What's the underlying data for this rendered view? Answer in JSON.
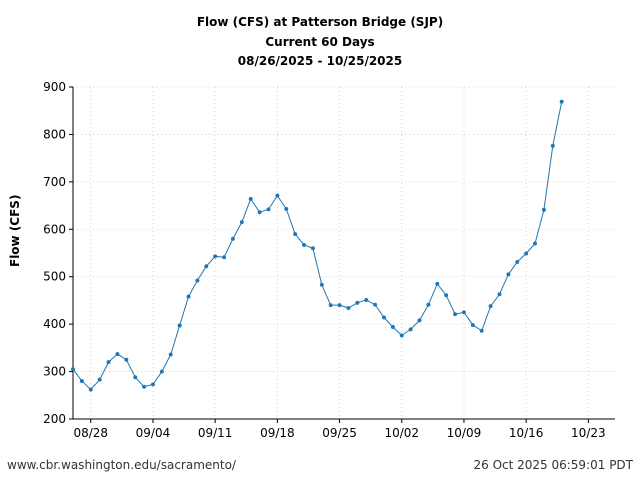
{
  "chart_data": {
    "type": "line",
    "title": "Flow (CFS) at Patterson Bridge (SJP)",
    "subtitle": "Current 60 Days",
    "date_range": "08/26/2025 - 10/25/2025",
    "ylabel": "Flow (CFS)",
    "xlabel": "",
    "ylim": [
      200,
      900
    ],
    "yticks": [
      200,
      300,
      400,
      500,
      600,
      700,
      800,
      900
    ],
    "xlim": [
      "2025-08-26",
      "2025-10-26"
    ],
    "xticks": [
      "08/28",
      "09/04",
      "09/11",
      "09/18",
      "09/25",
      "10/02",
      "10/09",
      "10/16",
      "10/23"
    ],
    "grid": true,
    "series": [
      {
        "color": "#1f77b4",
        "x": [
          "2025-08-26",
          "2025-08-27",
          "2025-08-28",
          "2025-08-29",
          "2025-08-30",
          "2025-08-31",
          "2025-09-01",
          "2025-09-02",
          "2025-09-03",
          "2025-09-04",
          "2025-09-05",
          "2025-09-06",
          "2025-09-07",
          "2025-09-08",
          "2025-09-09",
          "2025-09-10",
          "2025-09-11",
          "2025-09-12",
          "2025-09-13",
          "2025-09-14",
          "2025-09-15",
          "2025-09-16",
          "2025-09-17",
          "2025-09-18",
          "2025-09-19",
          "2025-09-20",
          "2025-09-21",
          "2025-09-22",
          "2025-09-23",
          "2025-09-24",
          "2025-09-25",
          "2025-09-26",
          "2025-09-27",
          "2025-09-28",
          "2025-09-29",
          "2025-09-30",
          "2025-10-01",
          "2025-10-02",
          "2025-10-03",
          "2025-10-04",
          "2025-10-05",
          "2025-10-06",
          "2025-10-07",
          "2025-10-08",
          "2025-10-09",
          "2025-10-10",
          "2025-10-11",
          "2025-10-12",
          "2025-10-13",
          "2025-10-14",
          "2025-10-15",
          "2025-10-16",
          "2025-10-17",
          "2025-10-18",
          "2025-10-19",
          "2025-10-20"
        ],
        "values": [
          305,
          280,
          262,
          283,
          320,
          337,
          325,
          288,
          268,
          273,
          300,
          336,
          397,
          458,
          492,
          522,
          543,
          541,
          580,
          615,
          664,
          636,
          642,
          671,
          643,
          590,
          567,
          560,
          483,
          440,
          440,
          434,
          445,
          451,
          441,
          414,
          394,
          376,
          389,
          408,
          441,
          485,
          461,
          421,
          425,
          398,
          386,
          438,
          463,
          505,
          531,
          549,
          570,
          641,
          776,
          869
        ]
      }
    ]
  },
  "footer": {
    "source_url": "www.cbr.washington.edu/sacramento/",
    "timestamp": "26 Oct 2025 06:59:01 PDT"
  }
}
